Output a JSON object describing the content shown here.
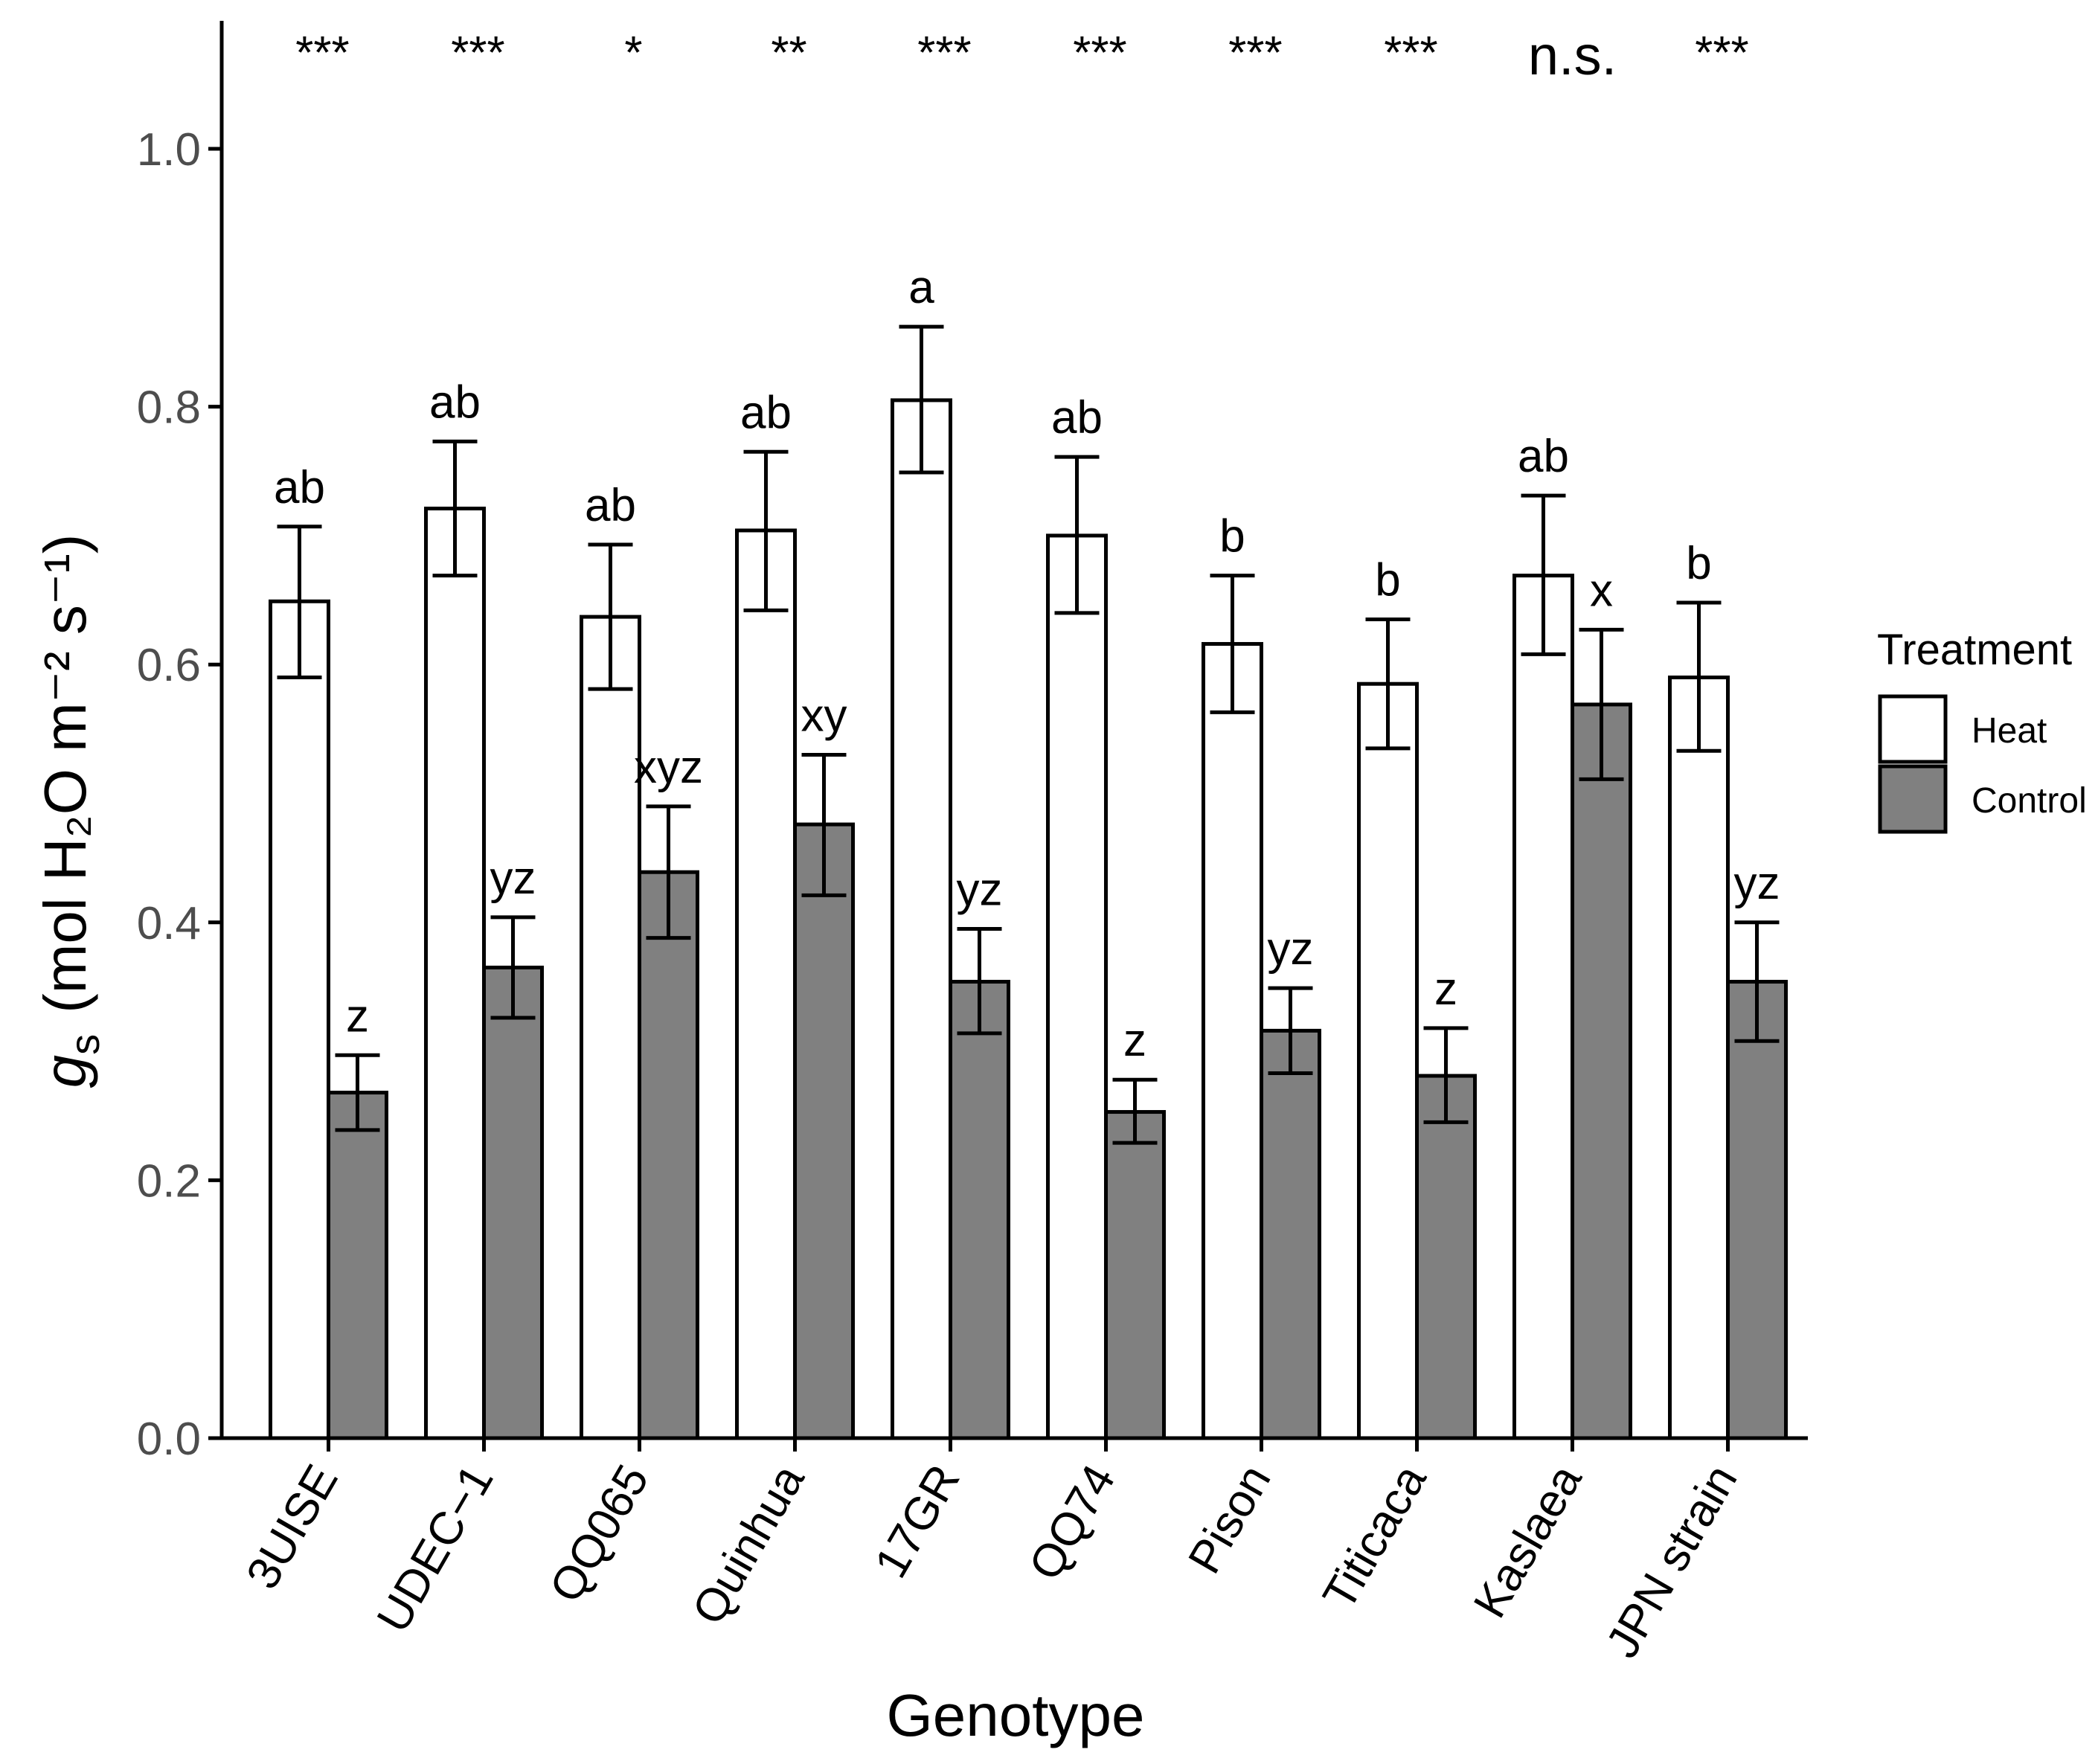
{
  "chart_data": {
    "type": "bar",
    "xlabel": "Genotype",
    "ylabel_symbol": "g",
    "ylabel_sub": "s",
    "ylabel_units": "(mol H₂O m⁻² s⁻¹)",
    "ylim": [
      0,
      1.1
    ],
    "yticks": [
      "0.0",
      "0.2",
      "0.4",
      "0.6",
      "0.8",
      "1.0"
    ],
    "categories": [
      "3UISE",
      "UDEC−1",
      "QQ065",
      "Quinhua",
      "17GR",
      "QQ74",
      "Pison",
      "Titicaca",
      "Kaslaea",
      "JPN strain"
    ],
    "series": [
      {
        "name": "Heat",
        "color": "#ffffff",
        "values": [
          0.649,
          0.721,
          0.637,
          0.704,
          0.805,
          0.7,
          0.616,
          0.585,
          0.669,
          0.59
        ],
        "error_low": [
          0.59,
          0.669,
          0.581,
          0.642,
          0.749,
          0.64,
          0.563,
          0.535,
          0.608,
          0.533
        ],
        "error_high": [
          0.707,
          0.773,
          0.693,
          0.765,
          0.862,
          0.761,
          0.669,
          0.635,
          0.731,
          0.648
        ],
        "letters": [
          "ab",
          "ab",
          "ab",
          "ab",
          "a",
          "ab",
          "b",
          "b",
          "ab",
          "b"
        ]
      },
      {
        "name": "Control",
        "color": "#808080",
        "values": [
          0.268,
          0.365,
          0.439,
          0.476,
          0.354,
          0.253,
          0.316,
          0.281,
          0.569,
          0.354
        ],
        "error_low": [
          0.239,
          0.326,
          0.388,
          0.421,
          0.314,
          0.229,
          0.283,
          0.245,
          0.511,
          0.308
        ],
        "error_high": [
          0.297,
          0.404,
          0.49,
          0.53,
          0.395,
          0.278,
          0.349,
          0.318,
          0.627,
          0.4
        ],
        "letters": [
          "z",
          "yz",
          "xyz",
          "xy",
          "yz",
          "z",
          "yz",
          "z",
          "x",
          "yz"
        ]
      }
    ],
    "significance": [
      "***",
      "***",
      "*",
      "**",
      "***",
      "***",
      "***",
      "***",
      "n.s.",
      "***"
    ],
    "legend": {
      "title": "Treatment",
      "position": "right",
      "entries": [
        {
          "label": "Heat",
          "color": "#ffffff"
        },
        {
          "label": "Control",
          "color": "#808080"
        }
      ]
    }
  }
}
